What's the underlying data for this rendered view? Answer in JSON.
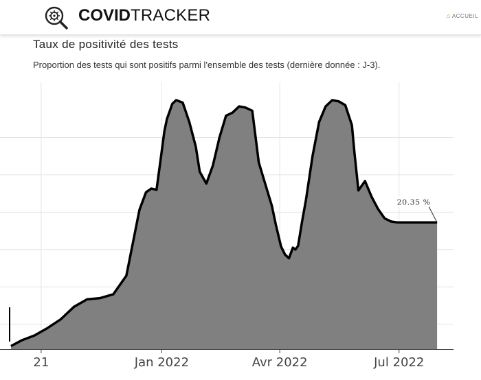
{
  "header": {
    "brand_bold": "COVID",
    "brand_light": "TRACKER",
    "nav_home": "ACCUEIL",
    "logo_icon": "virus-magnifier-icon"
  },
  "title": "Taux de positivité des tests",
  "subtitle": "Proportion des tests qui sont positifs parmi l'ensemble des tests (dernière donnée : J-3).",
  "chart_data": {
    "type": "area",
    "title": "Taux de positivité des tests",
    "xlabel": "",
    "ylabel": "",
    "x_tick_labels": [
      "21",
      "Jan 2022",
      "Avr 2022",
      "Jul 2022"
    ],
    "x_ticks": [
      "2021-10-01",
      "2022-01-01",
      "2022-04-01",
      "2022-07-01"
    ],
    "xlim": [
      "2021-09-08",
      "2022-07-31"
    ],
    "ylim": [
      0,
      40
    ],
    "grid": true,
    "fill_color": "#808080",
    "line_color": "#000000",
    "series": [
      {
        "x": [
          "2021-09-08",
          "2021-09-16",
          "2021-09-26",
          "2021-10-06",
          "2021-10-16",
          "2021-10-26",
          "2021-11-05",
          "2021-11-15",
          "2021-11-25",
          "2021-12-05",
          "2021-12-15",
          "2021-12-20",
          "2021-12-24",
          "2021-12-28",
          "2022-01-01",
          "2022-01-03",
          "2022-01-05",
          "2022-01-07",
          "2022-01-09",
          "2022-01-12",
          "2022-01-17",
          "2022-01-22",
          "2022-01-27",
          "2022-01-30",
          "2022-02-04",
          "2022-02-09",
          "2022-02-14",
          "2022-02-19",
          "2022-02-24",
          "2022-03-01",
          "2022-03-06",
          "2022-03-11",
          "2022-03-16",
          "2022-03-21",
          "2022-03-26",
          "2022-03-29",
          "2022-04-02",
          "2022-04-05",
          "2022-04-08",
          "2022-04-11",
          "2022-04-13",
          "2022-04-15",
          "2022-04-18",
          "2022-04-21",
          "2022-04-26",
          "2022-05-01",
          "2022-05-06",
          "2022-05-11",
          "2022-05-16",
          "2022-05-21",
          "2022-05-26",
          "2022-05-28",
          "2022-05-31",
          "2022-06-05",
          "2022-06-10",
          "2022-06-15",
          "2022-06-20",
          "2022-06-25",
          "2022-06-30",
          "2022-07-02",
          "2022-07-05",
          "2022-07-08",
          "2022-07-10",
          "2022-07-12",
          "2022-07-15",
          "2022-07-18",
          "2022-07-21",
          "2022-07-24",
          "2022-07-27",
          "2022-07-30"
        ],
        "y": [
          0.5,
          1.4,
          2.2,
          3.4,
          4.8,
          6.8,
          8.0,
          8.2,
          8.8,
          11.8,
          22.4,
          25.2,
          25.8,
          25.6,
          31.8,
          35.0,
          37.0,
          38.2,
          39.4,
          40.0,
          39.6,
          36.5,
          32.5,
          28.5,
          26.6,
          29.5,
          34.0,
          37.5,
          38.0,
          39.0,
          38.8,
          38.3,
          30.0,
          26.5,
          23.0,
          20.0,
          16.5,
          15.2,
          14.6,
          16.3,
          16.0,
          16.6,
          20.5,
          24.0,
          31.0,
          36.5,
          39.0,
          40.0,
          39.8,
          39.2,
          36.0,
          31.5,
          25.5,
          27.0,
          24.5,
          22.5,
          21.0,
          20.5,
          20.35,
          20.35,
          20.35,
          20.35,
          20.35,
          20.35,
          20.35,
          20.35,
          20.35,
          20.35,
          20.35,
          20.35
        ]
      }
    ],
    "annotation": {
      "x": "2022-07-30",
      "y": 20.35,
      "text": "20.35 %"
    }
  }
}
